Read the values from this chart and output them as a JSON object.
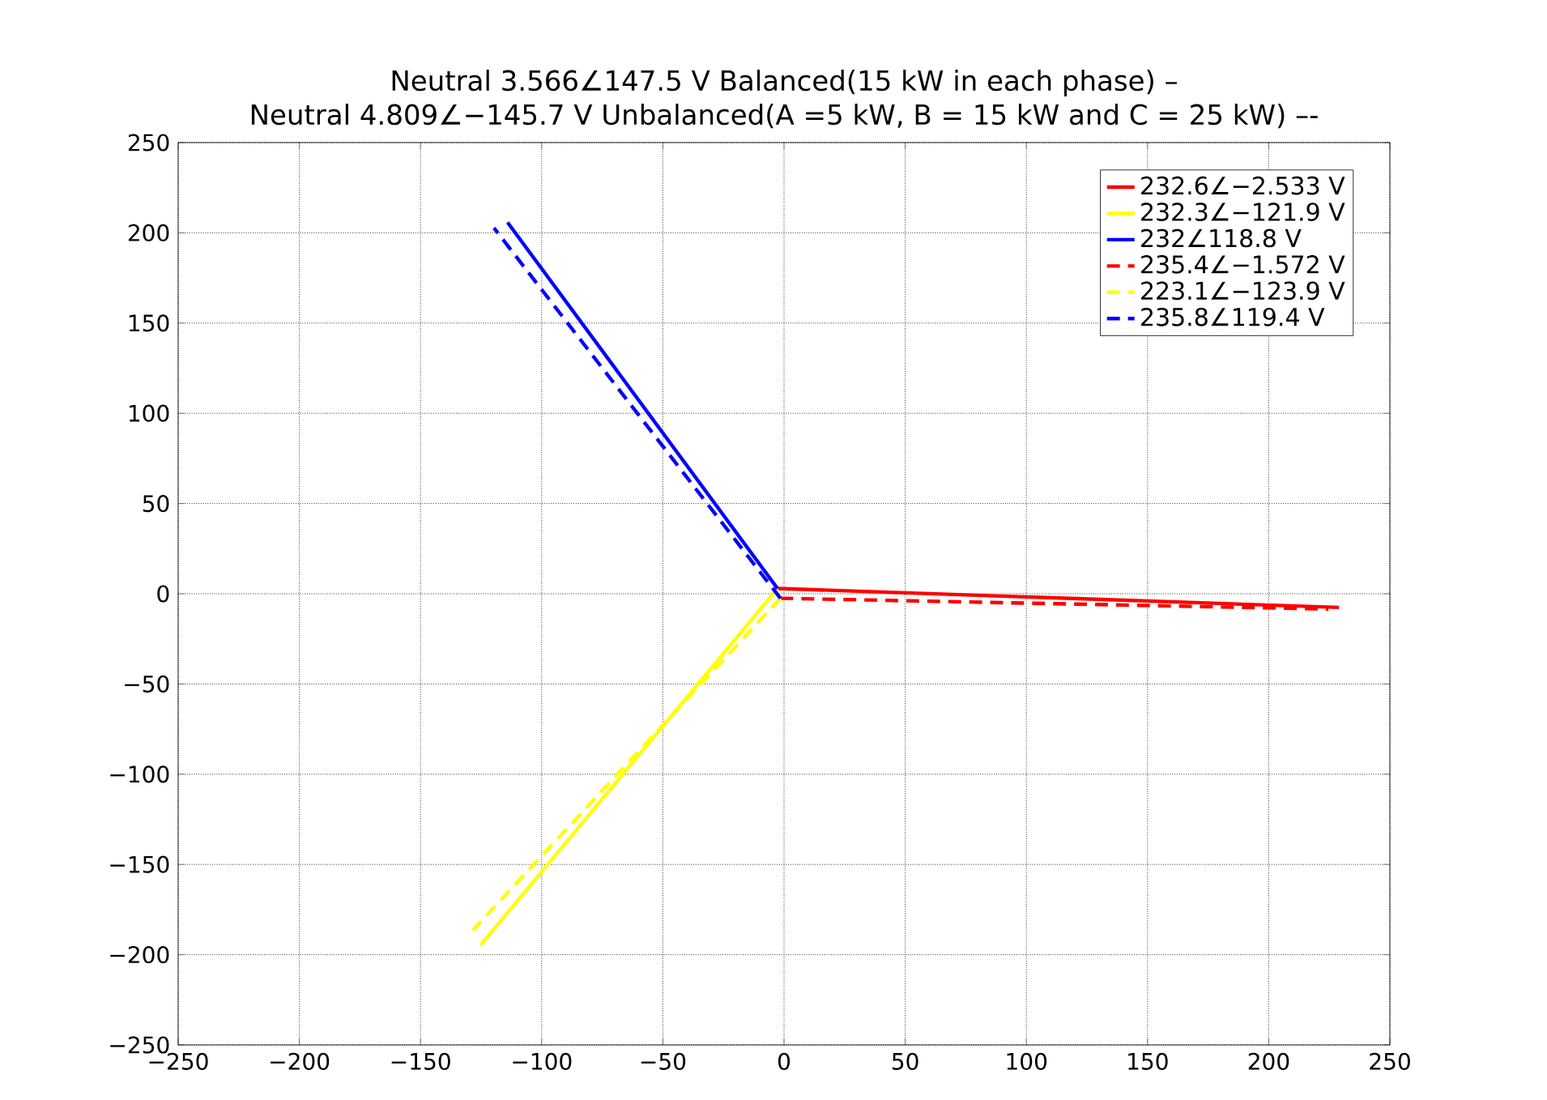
{
  "chart_data": {
    "type": "line",
    "title": "Neutral 3.566∠147.5 V Balanced(15 kW in each phase) –",
    "subtitle": "Neutral 4.809∠−145.7 V Unbalanced(A =5 kW, B = 15 kW and C = 25 kW) –-",
    "xlim": [
      -250,
      250
    ],
    "ylim": [
      -250,
      250
    ],
    "xticks": [
      {
        "value": -250,
        "label": "−250"
      },
      {
        "value": -200,
        "label": "−200"
      },
      {
        "value": -150,
        "label": "−150"
      },
      {
        "value": -100,
        "label": "−100"
      },
      {
        "value": -50,
        "label": "−50"
      },
      0,
      50,
      100,
      150,
      200,
      250
    ],
    "yticks": [
      {
        "value": -250,
        "label": "−250"
      },
      {
        "value": -200,
        "label": "−200"
      },
      {
        "value": -150,
        "label": "−150"
      },
      {
        "value": -100,
        "label": "−100"
      },
      {
        "value": -50,
        "label": "−50"
      },
      0,
      50,
      100,
      150,
      200,
      250
    ],
    "grid": true,
    "legend": "top right",
    "series": [
      {
        "name": "232.6∠−2.533 V",
        "color": "#ff0000",
        "line_style": "solid",
        "x": [
          -2.7,
          229
        ],
        "values": [
          2.9,
          -7.6
        ]
      },
      {
        "name": "232.3∠−121.9 V",
        "color": "#ffff00",
        "line_style": "solid",
        "x": [
          -2.7,
          -125.2
        ],
        "values": [
          2.9,
          -194.6
        ]
      },
      {
        "name": "232∠118.8 V",
        "color": "#0000ff",
        "line_style": "solid",
        "x": [
          -2.7,
          -114.1
        ],
        "values": [
          2.9,
          205.8
        ]
      },
      {
        "name": "235.4∠−1.572 V",
        "color": "#ff0000",
        "line_style": "dashed",
        "x": [
          -1.5,
          224.6
        ],
        "values": [
          -2.5,
          -8.5
        ]
      },
      {
        "name": "223.1∠−123.9 V",
        "color": "#ffff00",
        "line_style": "dashed",
        "x": [
          -1.5,
          -128.5
        ],
        "values": [
          -2.5,
          -186.5
        ]
      },
      {
        "name": "235.8∠119.4 V",
        "color": "#0000ff",
        "line_style": "dashed",
        "x": [
          -1.5,
          -119.7
        ],
        "values": [
          -2.5,
          202.7
        ]
      }
    ]
  }
}
